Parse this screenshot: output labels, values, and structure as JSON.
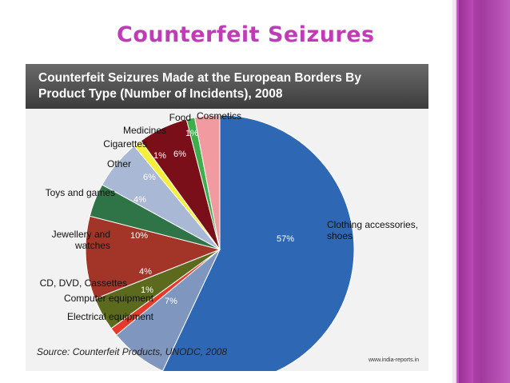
{
  "slide": {
    "title": "Counterfeit Seizures"
  },
  "chart_data": {
    "type": "pie",
    "title_lines": [
      "Counterfeit Seizures Made at the European Borders By",
      "Product Type (Number of Incidents), 2008"
    ],
    "source": "Source: Counterfeit Products, UNODC, 2008",
    "credit": "www.india-reports.in",
    "slices": [
      {
        "label": "Clothing accessories, shoes",
        "label_lines": [
          "Clothing accessories,",
          "shoes"
        ],
        "value": 57,
        "pct_label": "57%",
        "color": "#2e67b3"
      },
      {
        "label": "Electrical equipment",
        "label_lines": [
          "Electrical equipment"
        ],
        "value": 7,
        "pct_label": "7%",
        "color": "#7f97bf"
      },
      {
        "label": "Computer equipment",
        "label_lines": [
          "Computer equipment"
        ],
        "value": 1,
        "pct_label": "1%",
        "color": "#e53a2b"
      },
      {
        "label": "CD, DVD, Cassettes",
        "label_lines": [
          "CD, DVD, Cassettes"
        ],
        "value": 4,
        "pct_label": "4%",
        "color": "#5c6a1d"
      },
      {
        "label": "Jewellery and watches",
        "label_lines": [
          "Jewellery and",
          "watches"
        ],
        "value": 10,
        "pct_label": "10%",
        "color": "#a23527"
      },
      {
        "label": "Toys and games",
        "label_lines": [
          "Toys and games"
        ],
        "value": 4,
        "pct_label": "4%",
        "color": "#2e7446"
      },
      {
        "label": "Other",
        "label_lines": [
          "Other"
        ],
        "value": 6,
        "pct_label": "6%",
        "color": "#a9b8d4"
      },
      {
        "label": "Cigarettes",
        "label_lines": [
          "Cigarettes"
        ],
        "value": 1,
        "pct_label": "1%",
        "color": "#f4ef3b"
      },
      {
        "label": "Medicines",
        "label_lines": [
          "Medicines"
        ],
        "value": 6,
        "pct_label": "6%",
        "color": "#7a0f1a"
      },
      {
        "label": "Food",
        "label_lines": [
          "Food"
        ],
        "value": 1,
        "pct_label": "1%",
        "color": "#3dae49"
      },
      {
        "label": "Cosmetics",
        "label_lines": [
          "Cosmetics"
        ],
        "value": 3,
        "pct_label": "",
        "color": "#f19a9f"
      }
    ],
    "legend": "none"
  }
}
